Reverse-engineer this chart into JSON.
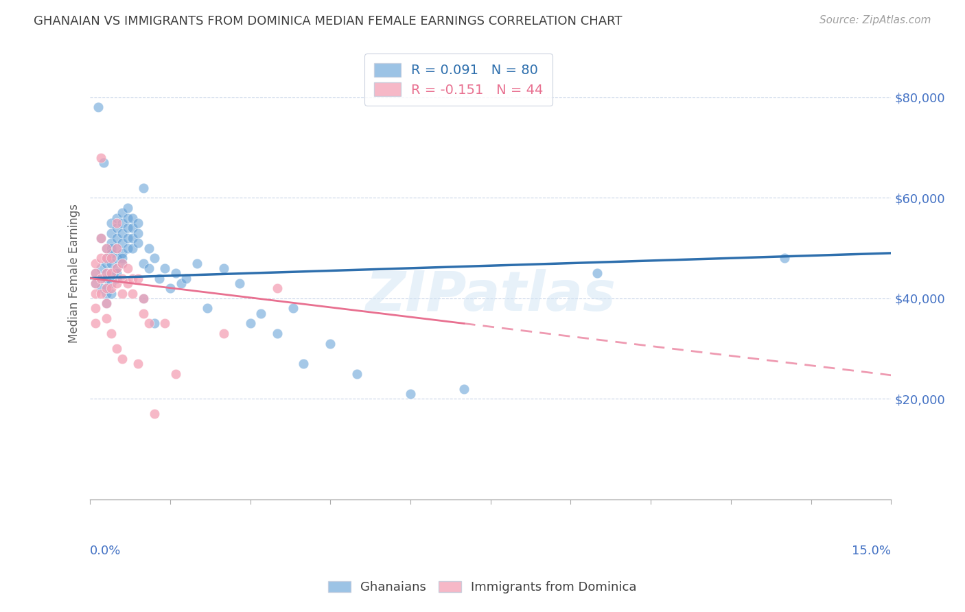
{
  "title": "GHANAIAN VS IMMIGRANTS FROM DOMINICA MEDIAN FEMALE EARNINGS CORRELATION CHART",
  "source": "Source: ZipAtlas.com",
  "ylabel": "Median Female Earnings",
  "xlim": [
    0.0,
    0.15
  ],
  "ylim": [
    0,
    90000
  ],
  "yticks": [
    20000,
    40000,
    60000,
    80000
  ],
  "ytick_labels": [
    "$20,000",
    "$40,000",
    "$60,000",
    "$80,000"
  ],
  "color_blue": "#5b9bd5",
  "color_pink": "#f4a0b5",
  "color_line_blue": "#2e6fad",
  "color_line_pink": "#e87090",
  "color_axis_labels": "#4472c4",
  "watermark": "ZIPatlas",
  "legend_label1": "R = 0.091   N = 80",
  "legend_label2": "R = -0.151   N = 44",
  "bottom_label1": "Ghanaians",
  "bottom_label2": "Immigrants from Dominica",
  "ghanaian_x": [
    0.001,
    0.001,
    0.0015,
    0.002,
    0.002,
    0.002,
    0.002,
    0.0025,
    0.003,
    0.003,
    0.003,
    0.003,
    0.003,
    0.003,
    0.003,
    0.003,
    0.004,
    0.004,
    0.004,
    0.004,
    0.004,
    0.004,
    0.004,
    0.004,
    0.004,
    0.005,
    0.005,
    0.005,
    0.005,
    0.005,
    0.005,
    0.005,
    0.005,
    0.006,
    0.006,
    0.006,
    0.006,
    0.006,
    0.006,
    0.006,
    0.007,
    0.007,
    0.007,
    0.007,
    0.007,
    0.008,
    0.008,
    0.008,
    0.008,
    0.009,
    0.009,
    0.009,
    0.01,
    0.01,
    0.01,
    0.011,
    0.011,
    0.012,
    0.012,
    0.013,
    0.014,
    0.015,
    0.016,
    0.017,
    0.018,
    0.02,
    0.022,
    0.025,
    0.028,
    0.03,
    0.032,
    0.035,
    0.038,
    0.04,
    0.045,
    0.05,
    0.06,
    0.07,
    0.095,
    0.13
  ],
  "ghanaian_y": [
    45000,
    43000,
    78000,
    46000,
    44000,
    52000,
    42000,
    67000,
    50000,
    48000,
    47000,
    45000,
    44000,
    42000,
    41000,
    39000,
    55000,
    53000,
    51000,
    50000,
    49000,
    47000,
    45000,
    43000,
    41000,
    56000,
    54000,
    52000,
    50000,
    48000,
    46000,
    45000,
    44000,
    57000,
    55000,
    53000,
    51000,
    49000,
    48000,
    47000,
    58000,
    56000,
    54000,
    52000,
    50000,
    56000,
    54000,
    52000,
    50000,
    55000,
    53000,
    51000,
    62000,
    47000,
    40000,
    50000,
    46000,
    48000,
    35000,
    44000,
    46000,
    42000,
    45000,
    43000,
    44000,
    47000,
    38000,
    46000,
    43000,
    35000,
    37000,
    33000,
    38000,
    27000,
    31000,
    25000,
    21000,
    22000,
    45000,
    48000
  ],
  "dominica_x": [
    0.001,
    0.001,
    0.001,
    0.001,
    0.001,
    0.001,
    0.002,
    0.002,
    0.002,
    0.002,
    0.002,
    0.003,
    0.003,
    0.003,
    0.003,
    0.003,
    0.003,
    0.004,
    0.004,
    0.004,
    0.004,
    0.005,
    0.005,
    0.005,
    0.005,
    0.005,
    0.006,
    0.006,
    0.006,
    0.006,
    0.007,
    0.007,
    0.008,
    0.008,
    0.009,
    0.009,
    0.01,
    0.01,
    0.011,
    0.012,
    0.014,
    0.016,
    0.025,
    0.035
  ],
  "dominica_y": [
    47000,
    45000,
    43000,
    41000,
    38000,
    35000,
    68000,
    52000,
    48000,
    44000,
    41000,
    50000,
    48000,
    45000,
    42000,
    39000,
    36000,
    48000,
    45000,
    42000,
    33000,
    55000,
    50000,
    46000,
    43000,
    30000,
    47000,
    44000,
    41000,
    28000,
    46000,
    43000,
    44000,
    41000,
    44000,
    27000,
    40000,
    37000,
    35000,
    17000,
    35000,
    25000,
    33000,
    42000
  ]
}
